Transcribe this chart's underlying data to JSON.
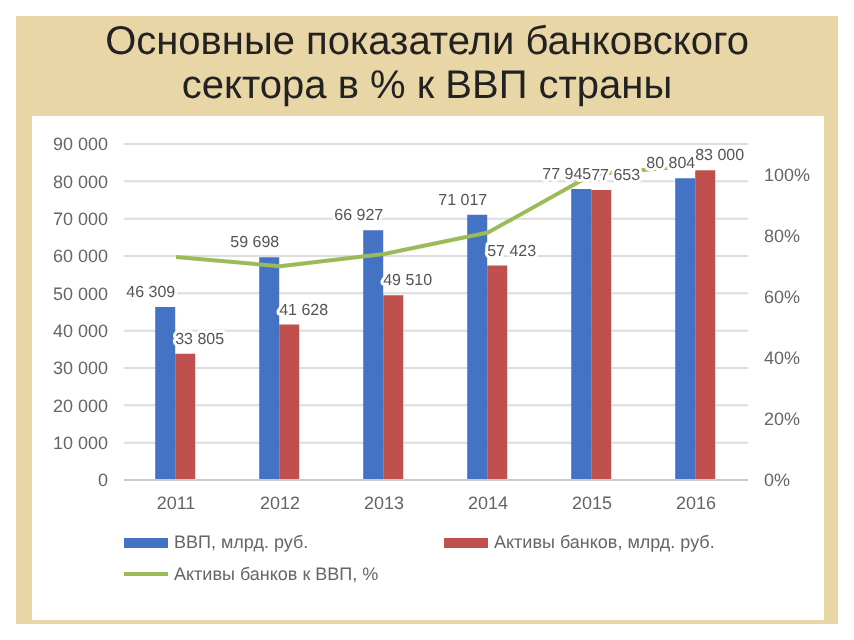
{
  "chart_data": {
    "type": "bar",
    "title": "Основные показатели банковского сектора в % к ВВП страны",
    "categories": [
      "2011",
      "2012",
      "2013",
      "2014",
      "2015",
      "2016"
    ],
    "series": [
      {
        "name": "ВВП, млрд. руб.",
        "color": "#4472c4",
        "values": [
          46309,
          59698,
          66927,
          71017,
          77945,
          80804
        ],
        "value_labels": [
          "46 309",
          "59 698",
          "66 927",
          "71 017",
          "77 945",
          "80 804"
        ]
      },
      {
        "name": "Активы банков, млрд. руб.",
        "color": "#c0504d",
        "values": [
          33805,
          41628,
          49510,
          57423,
          77653,
          83000
        ],
        "value_labels": [
          "33 805",
          "41 628",
          "49 510",
          "57 423",
          "77 653",
          "83 000"
        ]
      },
      {
        "name": "Активы банков к ВВП, %",
        "type": "line",
        "axis": "y2",
        "color": "#9bbb59",
        "values": [
          73,
          70,
          74,
          81,
          100,
          103
        ]
      }
    ],
    "ylim": [
      0,
      90000
    ],
    "yticks": [
      {
        "value": 0,
        "label": "0"
      },
      {
        "value": 10000,
        "label": "10 000"
      },
      {
        "value": 20000,
        "label": "20 000"
      },
      {
        "value": 30000,
        "label": "30 000"
      },
      {
        "value": 40000,
        "label": "40 000"
      },
      {
        "value": 50000,
        "label": "50 000"
      },
      {
        "value": 60000,
        "label": "60 000"
      },
      {
        "value": 70000,
        "label": "70 000"
      },
      {
        "value": 80000,
        "label": "80 000"
      },
      {
        "value": 90000,
        "label": "90 000"
      }
    ],
    "y2lim": [
      0,
      110
    ],
    "y2ticks": [
      {
        "value": 0,
        "label": "0%"
      },
      {
        "value": 20,
        "label": "20%"
      },
      {
        "value": 40,
        "label": "40%"
      },
      {
        "value": 60,
        "label": "60%"
      },
      {
        "value": 80,
        "label": "80%"
      },
      {
        "value": 100,
        "label": "100%"
      }
    ],
    "grid": "y",
    "legend": "bottom",
    "marker": "none"
  }
}
